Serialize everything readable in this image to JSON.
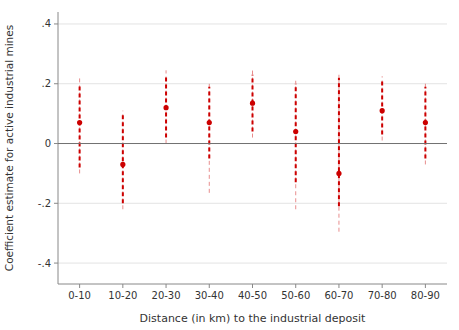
{
  "chart_data": {
    "type": "scatter",
    "xlabel": "Distance (in km) to the industrial deposit",
    "ylabel": "Coefficient estimate for active industrial mines",
    "categories": [
      "0-10",
      "10-20",
      "20-30",
      "30-40",
      "40-50",
      "50-60",
      "60-70",
      "70-80",
      "80-90"
    ],
    "values": [
      0.07,
      -0.07,
      0.12,
      0.07,
      0.135,
      0.04,
      -0.1,
      0.11,
      0.07
    ],
    "ci95_lower": [
      -0.08,
      -0.2,
      0.02,
      -0.05,
      0.04,
      -0.13,
      -0.21,
      0.03,
      -0.05
    ],
    "ci95_upper": [
      0.2,
      0.1,
      0.23,
      0.19,
      0.23,
      0.2,
      0.22,
      0.21,
      0.19
    ],
    "ci99_lower": [
      -0.1,
      -0.22,
      0.0,
      -0.165,
      0.02,
      -0.22,
      -0.295,
      0.01,
      -0.07
    ],
    "ci99_upper": [
      0.22,
      0.11,
      0.245,
      0.2,
      0.245,
      0.21,
      0.23,
      0.225,
      0.2
    ],
    "reference_line": 0,
    "color": "#cc0000",
    "line_style": "dashed",
    "ylim": [
      -0.47,
      0.44
    ],
    "yticks": [
      {
        "value": -0.4,
        "label": "-.4"
      },
      {
        "value": -0.2,
        "label": "-.2"
      },
      0,
      {
        "value": 0.2,
        "label": ".2"
      },
      {
        "value": 0.4,
        "label": ".4"
      }
    ],
    "grid": true
  }
}
